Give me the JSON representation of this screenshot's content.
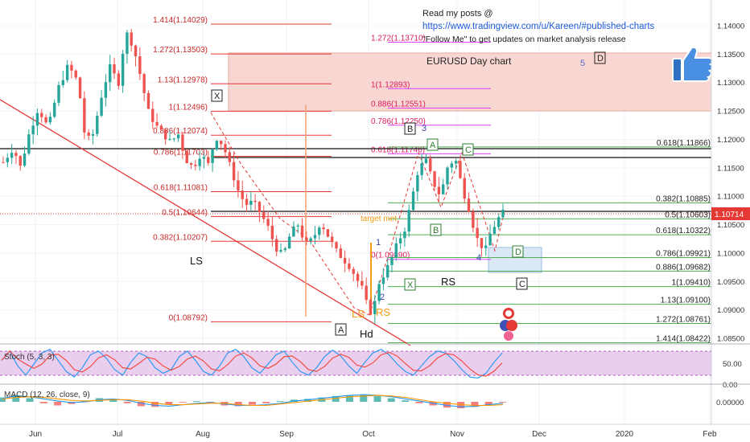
{
  "header": {
    "line1": "Read my posts @",
    "link": "https://www.tradingview.com/u/Kareen/#published-charts",
    "line3": "\"Follow Me\" to get updates on market analysis release",
    "title": "EURUSD Day chart",
    "wave5": "5",
    "box_d": "D"
  },
  "colors": {
    "up": "#26a69a",
    "down": "#ef5350",
    "fib_left": "#e53935",
    "fib_pink": "#e040fb",
    "zone_fill": "#f8d7d2",
    "blue_zone": "#dbe9f7",
    "stoch_bg": "#e1bee7",
    "stoch_k": "#2196f3",
    "stoch_d": "#f44336",
    "macd_line": "#2196f3",
    "signal_line": "#ff9800",
    "price_tag": "#e53935"
  },
  "left_fib": [
    {
      "label": "1.414(1.14029)",
      "value": 1.14029
    },
    {
      "label": "1.272(1.13503)",
      "value": 1.13503
    },
    {
      "label": "1.13(1.12978)",
      "value": 1.12978
    },
    {
      "label": "1(1.12496)",
      "value": 1.12496
    },
    {
      "label": "0.886(1.12074)",
      "value": 1.12074
    },
    {
      "label": "0.786(1.11703)",
      "value": 1.11703
    },
    {
      "label": "0.618(1.11081)",
      "value": 1.11081
    },
    {
      "label": "0.5(1.10644)",
      "value": 1.10644
    },
    {
      "label": "0.382(1.10207)",
      "value": 1.10207
    },
    {
      "label": "0(1.08792)",
      "value": 1.08792
    }
  ],
  "mid_fib": [
    {
      "label": "1.272(1.13710)",
      "value": 1.1371
    },
    {
      "label": "1(1.12893)",
      "value": 1.12893
    },
    {
      "label": "0.886(1.12551)",
      "value": 1.12551
    },
    {
      "label": "0.786(1.12250)",
      "value": 1.1225
    },
    {
      "label": "0.618(1.11746)",
      "value": 1.11746
    },
    {
      "label": "0(1.09890)",
      "value": 1.0989
    }
  ],
  "right_fib": [
    {
      "label": "0.618(1.11866)",
      "value": 1.11866
    },
    {
      "label": "0.382(1.10885)",
      "value": 1.10885
    },
    {
      "label": "0.5(1.10603)",
      "value": 1.10603
    },
    {
      "label": "0.618(1.10322)",
      "value": 1.10322
    },
    {
      "label": "0.786(1.09921)",
      "value": 1.09921
    },
    {
      "label": "0.886(1.09682)",
      "value": 1.09682
    },
    {
      "label": "1(1.09410)",
      "value": 1.0941
    },
    {
      "label": "1.13(1.09100)",
      "value": 1.091
    },
    {
      "label": "1.272(1.08761)",
      "value": 1.08761
    },
    {
      "label": "1.414(1.08422)",
      "value": 1.08422
    }
  ],
  "annotations": {
    "ls": "LS",
    "rs": "RS",
    "hd": "Hd",
    "ls_small": "LS",
    "rs_small": "RS",
    "target_met": "target met",
    "wave1": "1",
    "wave2": "2",
    "wave3": "3",
    "wave4": "4",
    "box_x": "X",
    "box_a_bottom": "A",
    "box_b_mid": "B",
    "box_a_top": "A",
    "box_b_low": "B",
    "box_c_top": "C",
    "box_x_low": "X",
    "box_c_low": "C",
    "box_d_blue": "D"
  },
  "price_tag": "1.10714",
  "indicators": {
    "stoch_label": "Stoch (5, 3, 3)",
    "macd_label": "MACD (12, 26, close, 9)"
  },
  "chart_data": {
    "type": "candlestick",
    "title": "EURUSD Day chart",
    "symbol": "EURUSD",
    "timeframe": "Day",
    "x_ticks": [
      "Jun",
      "Jul",
      "Aug",
      "Sep",
      "Oct",
      "Nov",
      "Dec",
      "2020",
      "Feb"
    ],
    "y_ticks": [
      "1.14000",
      "1.13500",
      "1.13000",
      "1.12500",
      "1.12000",
      "1.11500",
      "1.11000",
      "1.10500",
      "1.10000",
      "1.09500",
      "1.09000",
      "1.08500"
    ],
    "ylim": [
      1.0835,
      1.1435
    ],
    "last_price": 1.10714,
    "stoch_ticks": [
      "50.00",
      "0.00"
    ],
    "macd_ticks": [
      "0.00000"
    ],
    "price_path": [
      [
        0,
        1.116
      ],
      [
        0.02,
        1.1185
      ],
      [
        0.035,
        1.115
      ],
      [
        0.05,
        1.1205
      ],
      [
        0.07,
        1.1255
      ],
      [
        0.09,
        1.122
      ],
      [
        0.11,
        1.129
      ],
      [
        0.13,
        1.133
      ],
      [
        0.15,
        1.13
      ],
      [
        0.165,
        1.1195
      ],
      [
        0.18,
        1.121
      ],
      [
        0.2,
        1.129
      ],
      [
        0.215,
        1.133
      ],
      [
        0.23,
        1.1295
      ],
      [
        0.245,
        1.139
      ],
      [
        0.26,
        1.1365
      ],
      [
        0.275,
        1.131
      ],
      [
        0.29,
        1.125
      ],
      [
        0.305,
        1.1225
      ],
      [
        0.32,
        1.121
      ],
      [
        0.335,
        1.1195
      ],
      [
        0.35,
        1.121
      ],
      [
        0.365,
        1.1165
      ],
      [
        0.38,
        1.115
      ],
      [
        0.395,
        1.1175
      ],
      [
        0.41,
        1.1155
      ],
      [
        0.425,
        1.1205
      ],
      [
        0.44,
        1.119
      ],
      [
        0.455,
        1.115
      ],
      [
        0.47,
        1.111
      ],
      [
        0.485,
        1.1085
      ],
      [
        0.5,
        1.109
      ],
      [
        0.515,
        1.107
      ],
      [
        0.53,
        1.1045
      ],
      [
        0.545,
        1.101
      ],
      [
        0.56,
        1.0995
      ],
      [
        0.575,
        1.1035
      ],
      [
        0.59,
        1.105
      ],
      [
        0.605,
        1.1015
      ],
      [
        0.62,
        1.1025
      ],
      [
        0.635,
        1.1055
      ],
      [
        0.65,
        1.103
      ],
      [
        0.665,
        1.1005
      ],
      [
        0.68,
        1.099
      ],
      [
        0.695,
        1.0975
      ],
      [
        0.71,
        1.095
      ],
      [
        0.72,
        1.0935
      ],
      [
        0.73,
        1.09
      ],
      [
        0.74,
        1.0895
      ],
      [
        0.75,
        1.0945
      ],
      [
        0.76,
        1.096
      ],
      [
        0.775,
        1.0985
      ],
      [
        0.79,
        1.102
      ],
      [
        0.805,
        1.1045
      ],
      [
        0.815,
        1.1085
      ],
      [
        0.83,
        1.1145
      ],
      [
        0.845,
        1.1165
      ],
      [
        0.86,
        1.1125
      ],
      [
        0.875,
        1.11
      ],
      [
        0.89,
        1.1155
      ],
      [
        0.905,
        1.1165
      ],
      [
        0.92,
        1.111
      ],
      [
        0.935,
        1.107
      ],
      [
        0.945,
        1.103
      ],
      [
        0.955,
        1.1015
      ],
      [
        0.965,
        1.1005
      ],
      [
        0.975,
        1.1035
      ],
      [
        0.99,
        1.106
      ],
      [
        1.0,
        1.1071
      ]
    ],
    "stoch_k": [
      60,
      85,
      45,
      20,
      50,
      80,
      90,
      60,
      30,
      15,
      40,
      75,
      85,
      65,
      35,
      20,
      55,
      80,
      70,
      40,
      25,
      35,
      70,
      85,
      60,
      30,
      20,
      45,
      80,
      90,
      70,
      40,
      25,
      50,
      75,
      85,
      55,
      30,
      20,
      40,
      70,
      88,
      72,
      45,
      25,
      55,
      80,
      90,
      75,
      50,
      30,
      20,
      45,
      70,
      85,
      80,
      60,
      35,
      15,
      12,
      25,
      55,
      80
    ],
    "macd_hist": [
      0.6,
      0.9,
      0.5,
      -0.2,
      -0.5,
      -0.3,
      0.2,
      0.5,
      0.3,
      -0.2,
      -0.6,
      -0.7,
      -0.4,
      -0.1,
      0.1,
      -0.2,
      -0.5,
      -0.6,
      -0.4,
      -0.2,
      0.1,
      0.3,
      0.4,
      0.6,
      0.8,
      0.9,
      1,
      0.8,
      0.5,
      0.2,
      -0.2,
      -0.5,
      -0.8,
      -0.9,
      -0.7,
      -0.4,
      -0.1
    ],
    "macd_line": [
      0.5,
      0.8,
      0.7,
      0.4,
      0.1,
      -0.1,
      0,
      0.3,
      0.4,
      0.2,
      -0.2,
      -0.5,
      -0.6,
      -0.4,
      -0.2,
      -0.1,
      -0.3,
      -0.5,
      -0.5,
      -0.4,
      -0.2,
      0.1,
      0.3,
      0.5,
      0.7,
      0.9,
      1,
      0.9,
      0.7,
      0.4,
      0.1,
      -0.2,
      -0.5,
      -0.7,
      -0.6,
      -0.4,
      -0.2
    ],
    "signal_line": [
      0.4,
      0.6,
      0.7,
      0.6,
      0.4,
      0.2,
      0.1,
      0.2,
      0.3,
      0.3,
      0.1,
      -0.2,
      -0.4,
      -0.4,
      -0.3,
      -0.2,
      -0.2,
      -0.4,
      -0.5,
      -0.5,
      -0.3,
      -0.1,
      0.1,
      0.3,
      0.5,
      0.7,
      0.8,
      0.9,
      0.8,
      0.6,
      0.3,
      0,
      -0.2,
      -0.4,
      -0.5,
      -0.5,
      -0.4
    ]
  }
}
